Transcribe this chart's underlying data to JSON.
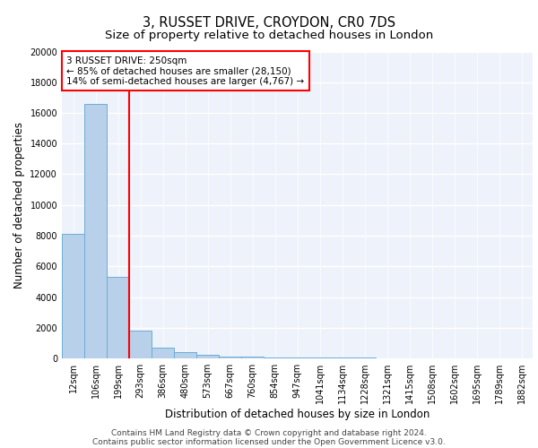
{
  "title": "3, RUSSET DRIVE, CROYDON, CR0 7DS",
  "subtitle": "Size of property relative to detached houses in London",
  "xlabel": "Distribution of detached houses by size in London",
  "ylabel": "Number of detached properties",
  "categories": [
    "12sqm",
    "106sqm",
    "199sqm",
    "293sqm",
    "386sqm",
    "480sqm",
    "573sqm",
    "667sqm",
    "760sqm",
    "854sqm",
    "947sqm",
    "1041sqm",
    "1134sqm",
    "1228sqm",
    "1321sqm",
    "1415sqm",
    "1508sqm",
    "1602sqm",
    "1695sqm",
    "1789sqm",
    "1882sqm"
  ],
  "values": [
    8100,
    16600,
    5300,
    1800,
    700,
    380,
    220,
    140,
    90,
    70,
    55,
    45,
    38,
    30,
    25,
    22,
    18,
    15,
    12,
    10,
    8
  ],
  "bar_color": "#b8d0ea",
  "bar_edge_color": "#6aaed6",
  "vline_x": 2.5,
  "vline_color": "red",
  "annotation_text": "3 RUSSET DRIVE: 250sqm\n← 85% of detached houses are smaller (28,150)\n14% of semi-detached houses are larger (4,767) →",
  "annotation_box_color": "white",
  "annotation_box_edge_color": "red",
  "ylim": [
    0,
    20000
  ],
  "yticks": [
    0,
    2000,
    4000,
    6000,
    8000,
    10000,
    12000,
    14000,
    16000,
    18000,
    20000
  ],
  "footer_line1": "Contains HM Land Registry data © Crown copyright and database right 2024.",
  "footer_line2": "Contains public sector information licensed under the Open Government Licence v3.0.",
  "background_color": "#eef2fb",
  "grid_color": "#d0d8ee",
  "title_fontsize": 10.5,
  "subtitle_fontsize": 9.5,
  "axis_label_fontsize": 8.5,
  "tick_fontsize": 7,
  "annotation_fontsize": 7.5,
  "footer_fontsize": 6.5
}
